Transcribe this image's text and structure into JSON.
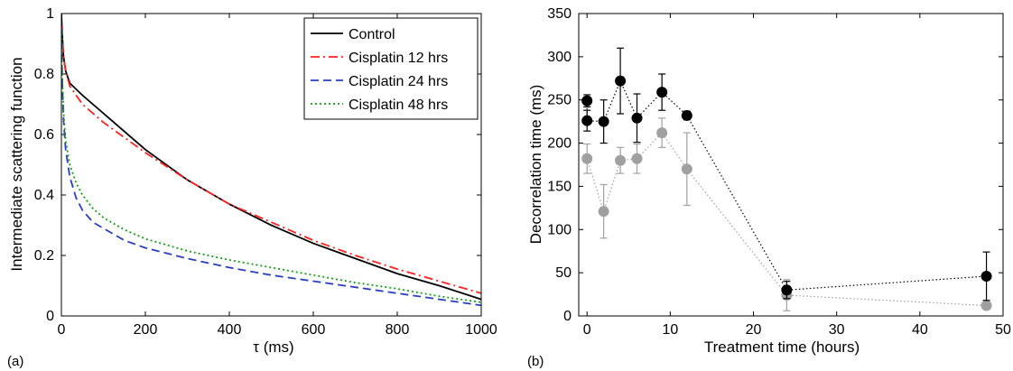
{
  "chart_data": [
    {
      "panel_label": "(a)",
      "type": "line",
      "xlabel": "τ (ms)",
      "ylabel": "Intermediate scattering function",
      "xlim": [
        0,
        1000
      ],
      "ylim": [
        0,
        1
      ],
      "xticks": [
        "0",
        "200",
        "400",
        "600",
        "800",
        "1000"
      ],
      "yticks": [
        "0",
        "0.2",
        "0.4",
        "0.6",
        "0.8",
        "1"
      ],
      "grid": false,
      "legend_position": "top-right",
      "series": [
        {
          "name": "Control",
          "color": "#000000",
          "style": "solid",
          "x": [
            0,
            2,
            5,
            10,
            20,
            50,
            100,
            150,
            200,
            300,
            400,
            500,
            600,
            700,
            800,
            900,
            1000
          ],
          "y": [
            1.0,
            0.93,
            0.86,
            0.81,
            0.77,
            0.73,
            0.67,
            0.61,
            0.55,
            0.45,
            0.37,
            0.3,
            0.24,
            0.19,
            0.14,
            0.1,
            0.055
          ]
        },
        {
          "name": "Cisplatin 12 hrs",
          "color": "#ff2222",
          "style": "dashdot",
          "x": [
            0,
            2,
            5,
            10,
            20,
            50,
            100,
            150,
            200,
            300,
            400,
            500,
            600,
            700,
            800,
            900,
            1000
          ],
          "y": [
            0.96,
            0.91,
            0.86,
            0.81,
            0.76,
            0.7,
            0.64,
            0.59,
            0.54,
            0.45,
            0.37,
            0.31,
            0.25,
            0.2,
            0.155,
            0.115,
            0.075
          ]
        },
        {
          "name": "Cisplatin 24 hrs",
          "color": "#2a3fbf",
          "style": "dashed",
          "x": [
            0,
            2,
            5,
            10,
            20,
            35,
            50,
            75,
            100,
            150,
            200,
            300,
            400,
            500,
            600,
            700,
            800,
            900,
            1000
          ],
          "y": [
            0.95,
            0.78,
            0.65,
            0.55,
            0.46,
            0.39,
            0.35,
            0.31,
            0.29,
            0.25,
            0.225,
            0.19,
            0.16,
            0.135,
            0.115,
            0.095,
            0.075,
            0.055,
            0.035
          ]
        },
        {
          "name": "Cisplatin 48 hrs",
          "color": "#1a9a1a",
          "style": "dotted",
          "x": [
            0,
            2,
            5,
            10,
            20,
            35,
            50,
            75,
            100,
            150,
            200,
            300,
            400,
            500,
            600,
            700,
            800,
            900,
            1000
          ],
          "y": [
            0.95,
            0.8,
            0.68,
            0.58,
            0.5,
            0.44,
            0.4,
            0.355,
            0.325,
            0.285,
            0.255,
            0.215,
            0.185,
            0.16,
            0.135,
            0.11,
            0.09,
            0.065,
            0.045
          ]
        }
      ]
    },
    {
      "panel_label": "(b)",
      "type": "scatter",
      "xlabel": "Treatment time (hours)",
      "ylabel": "Decorrelation time (ms)",
      "xlim": [
        -1,
        50
      ],
      "ylim": [
        0,
        350
      ],
      "xticks": [
        "0",
        "10",
        "20",
        "30",
        "40",
        "50"
      ],
      "yticks": [
        "0",
        "50",
        "100",
        "150",
        "200",
        "250",
        "300",
        "350"
      ],
      "grid": false,
      "series": [
        {
          "color": "#000000",
          "line": "dotted",
          "points": [
            {
              "x": 0,
              "y": 249,
              "err": 7
            },
            {
              "x": 0,
              "y": 226,
              "err": 12
            },
            {
              "x": 2,
              "y": 225,
              "err": 25
            },
            {
              "x": 4,
              "y": 272,
              "err": 38
            },
            {
              "x": 6,
              "y": 229,
              "err": 28
            },
            {
              "x": 9,
              "y": 259,
              "err": 21
            },
            {
              "x": 12,
              "y": 232,
              "err": 5
            },
            {
              "x": 24,
              "y": 30,
              "err": 10
            },
            {
              "x": 48,
              "y": 46,
              "err": 28
            }
          ]
        },
        {
          "color": "#a0a0a0",
          "line": "dotted",
          "points": [
            {
              "x": 0,
              "y": 182,
              "err": 17
            },
            {
              "x": 2,
              "y": 121,
              "err": 31
            },
            {
              "x": 4,
              "y": 180,
              "err": 15
            },
            {
              "x": 6,
              "y": 182,
              "err": 17
            },
            {
              "x": 9,
              "y": 212,
              "err": 17
            },
            {
              "x": 12,
              "y": 170,
              "err": 42
            },
            {
              "x": 24,
              "y": 24,
              "err": 18
            },
            {
              "x": 48,
              "y": 12,
              "err": 4
            }
          ]
        }
      ]
    }
  ]
}
